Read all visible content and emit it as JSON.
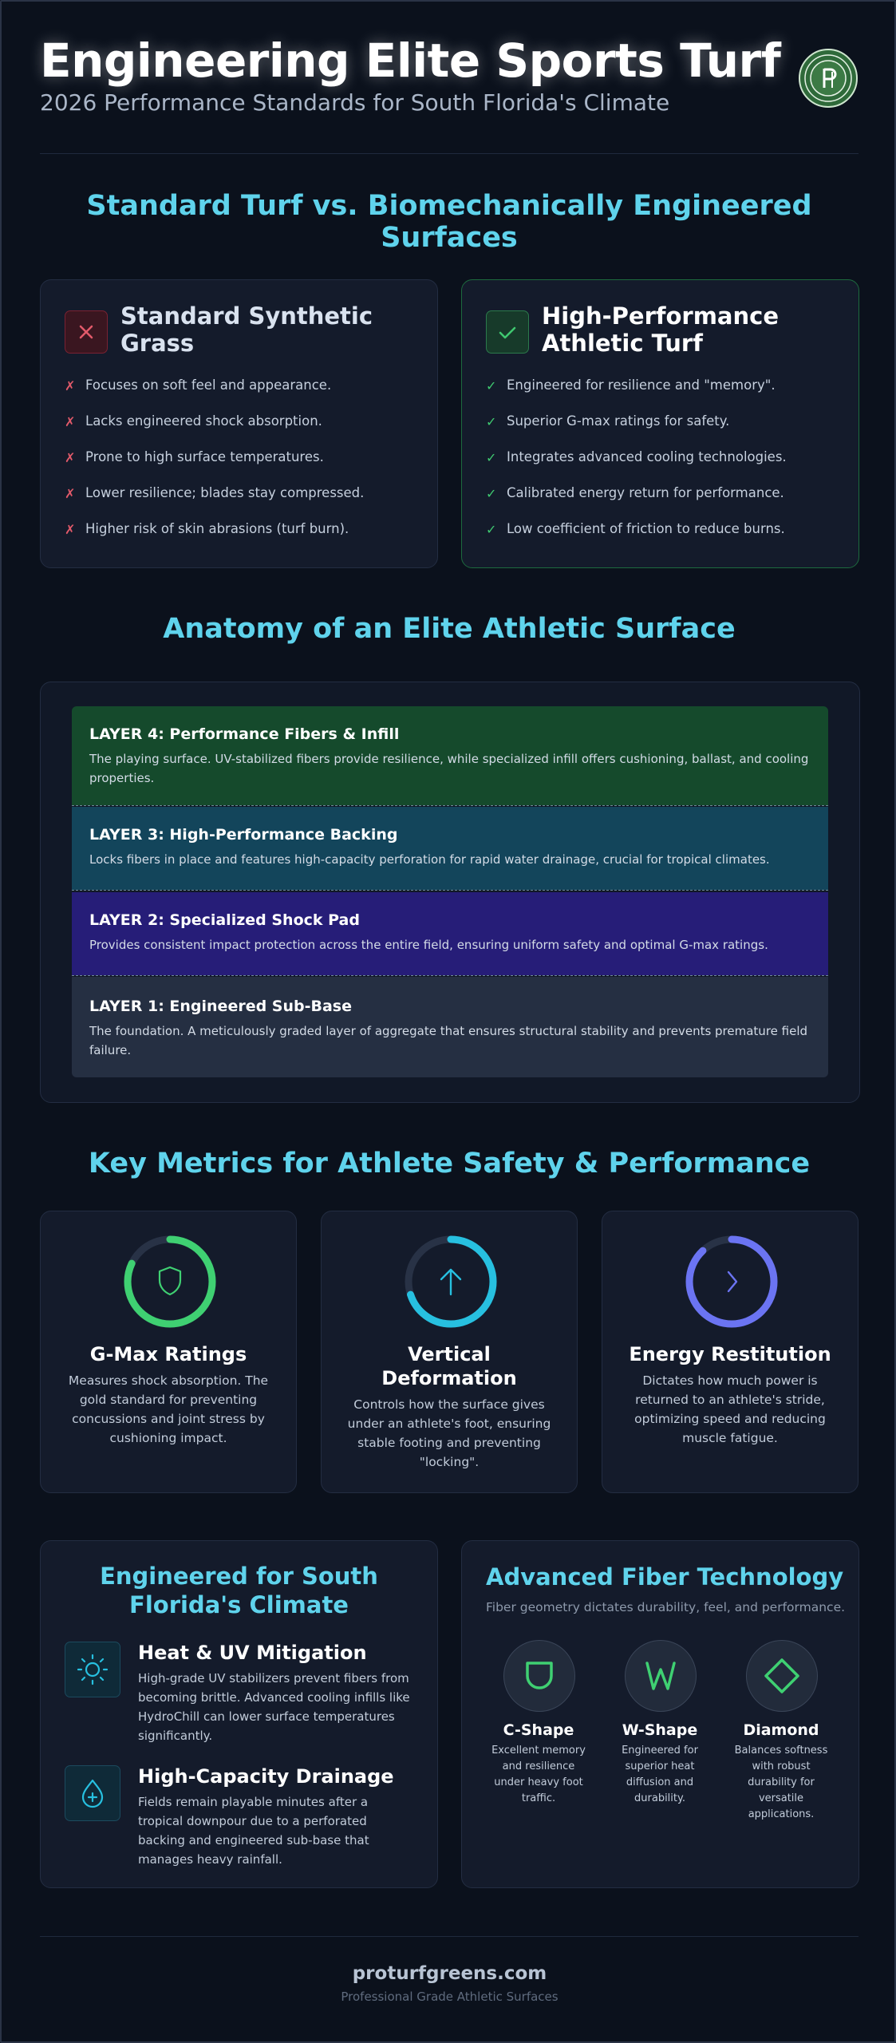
{
  "header": {
    "title": "Engineering Elite Sports Turf",
    "subtitle": "2026 Performance Standards for South Florida's Climate",
    "logo_icon": "turf-company-seal-icon"
  },
  "comparison": {
    "title": "Standard Turf vs. Biomechanically Engineered Surfaces",
    "standard": {
      "title": "Standard Synthetic Grass",
      "icon": "x-icon",
      "items": [
        "Focuses on soft feel and appearance.",
        "Lacks engineered shock absorption.",
        "Prone to high surface temperatures.",
        "Lower resilience; blades stay compressed.",
        "Higher risk of skin abrasions (turf burn)."
      ]
    },
    "performance": {
      "title": "High-Performance Athletic Turf",
      "icon": "check-icon",
      "items": [
        "Engineered for resilience and \"memory\".",
        "Superior G-max ratings for safety.",
        "Integrates advanced cooling technologies.",
        "Calibrated energy return for performance.",
        "Low coefficient of friction to reduce burns."
      ]
    },
    "colors": {
      "bad": "#e25a6a",
      "good": "#3fc870"
    }
  },
  "anatomy": {
    "title": "Anatomy of an Elite Athletic Surface",
    "layers": [
      {
        "title": "LAYER 4: Performance Fibers & Infill",
        "desc": "The playing surface. UV-stabilized fibers provide resilience, while specialized infill offers cushioning, ballast, and cooling properties.",
        "color": "#154a2c"
      },
      {
        "title": "LAYER 3: High-Performance Backing",
        "desc": "Locks fibers in place and features high-capacity perforation for rapid water drainage, crucial for tropical climates.",
        "color": "#13455b"
      },
      {
        "title": "LAYER 2: Specialized Shock Pad",
        "desc": "Provides consistent impact protection across the entire field, ensuring uniform safety and optimal G-max ratings.",
        "color": "#261d78"
      },
      {
        "title": "LAYER 1: Engineered Sub-Base",
        "desc": "The foundation. A meticulously graded layer of aggregate that ensures structural stability and prevents premature field failure.",
        "color": "#252f42"
      }
    ]
  },
  "metrics": {
    "title": "Key Metrics for Athlete Safety & Performance",
    "items": [
      {
        "title": "G-Max Ratings",
        "desc": "Measures shock absorption. The gold standard for preventing concussions and joint stress by cushioning impact.",
        "icon": "shield-icon",
        "color": "#3fd072",
        "level": 0.82
      },
      {
        "title": "Vertical Deformation",
        "desc": "Controls how the surface gives under an athlete's foot, ensuring stable footing and preventing \"locking\".",
        "icon": "arrow-up-icon",
        "color": "#27c0e0",
        "level": 0.7
      },
      {
        "title": "Energy Restitution",
        "desc": "Dictates how much power is returned to an athlete's stride, optimizing speed and reducing muscle fatigue.",
        "icon": "chevron-right-icon",
        "color": "#6b74f2",
        "level": 0.88
      }
    ]
  },
  "climate": {
    "title": "Engineered for South Florida's Climate",
    "items": [
      {
        "title": "Heat & UV Mitigation",
        "desc": "High-grade UV stabilizers prevent fibers from becoming brittle. Advanced cooling infills like HydroChill can lower surface temperatures significantly.",
        "icon": "sun-icon"
      },
      {
        "title": "High-Capacity Drainage",
        "desc": "Fields remain playable minutes after a tropical downpour due to a perforated backing and engineered sub-base that manages heavy rainfall.",
        "icon": "water-drop-icon"
      }
    ]
  },
  "fiber": {
    "title": "Advanced Fiber Technology",
    "subtitle": "Fiber geometry dictates durability, feel, and performance.",
    "items": [
      {
        "title": "C-Shape",
        "desc": "Excellent memory and resilience under heavy foot traffic.",
        "icon": "c-shape-icon"
      },
      {
        "title": "W-Shape",
        "desc": "Engineered for superior heat diffusion and durability.",
        "icon": "w-shape-icon"
      },
      {
        "title": "Diamond",
        "desc": "Balances softness with robust durability for versatile applications.",
        "icon": "diamond-icon"
      }
    ]
  },
  "footer": {
    "site": "proturfgreens.com",
    "tagline": "Professional Grade Athletic Surfaces"
  }
}
